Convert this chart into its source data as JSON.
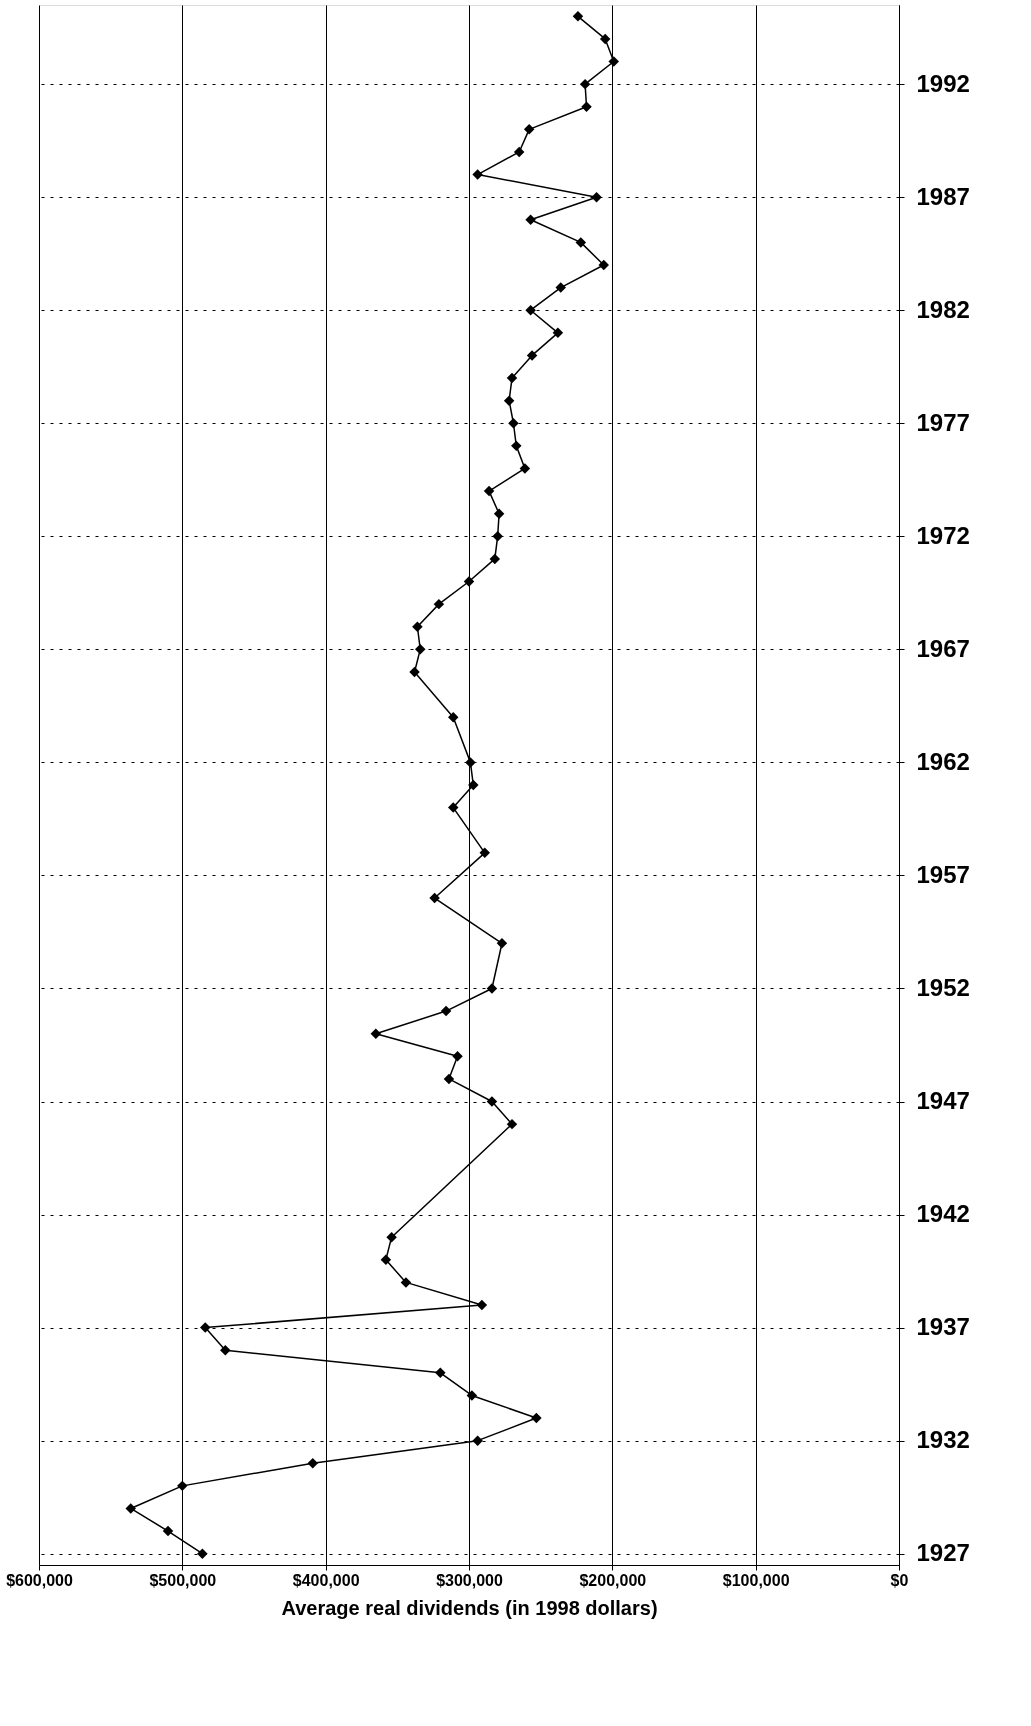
{
  "chart_data": {
    "type": "line",
    "xlabel": "Average real dividends (in 1998 dollars)",
    "series": [
      {
        "color": "#000000",
        "x": [
          486000,
          510000,
          536000,
          500000,
          409000,
          294000,
          253000,
          298000,
          320000,
          470000,
          484000,
          291000,
          344000,
          358000,
          354000,
          270000,
          284000,
          314000,
          308000,
          365000,
          316000,
          284000,
          277000,
          324000,
          289000,
          311000,
          297000,
          299000,
          311000,
          338000,
          334000,
          336000,
          321000,
          300000,
          282000,
          280000,
          279000,
          286000,
          261000,
          267000,
          269000,
          272000,
          270000,
          256000,
          238000,
          257000,
          236000,
          206000,
          222000,
          257000,
          211000,
          294000,
          265000,
          258000,
          218000,
          219000,
          199000,
          205000,
          224000
        ],
        "values": [
          1927,
          1928,
          1929,
          1930,
          1931,
          1932,
          1933,
          1934,
          1935,
          1936,
          1937,
          1938,
          1939,
          1940,
          1941,
          1946,
          1947,
          1948,
          1949,
          1950,
          1951,
          1952,
          1954,
          1956,
          1958,
          1960,
          1961,
          1962,
          1964,
          1966,
          1967,
          1968,
          1969,
          1970,
          1971,
          1972,
          1973,
          1974,
          1975,
          1976,
          1977,
          1978,
          1979,
          1980,
          1981,
          1982,
          1983,
          1984,
          1985,
          1986,
          1987,
          1988,
          1989,
          1990,
          1991,
          1992,
          1993,
          1994,
          1995
        ]
      }
    ],
    "ylim": [
      1926.5,
      1995.5
    ],
    "yticks": [
      1927,
      1932,
      1937,
      1942,
      1947,
      1952,
      1957,
      1962,
      1967,
      1972,
      1977,
      1982,
      1987,
      1992
    ],
    "xlim": [
      600000,
      0
    ],
    "xticks": [
      {
        "value": 0,
        "label": "$0"
      },
      {
        "value": 100000,
        "label": "$100,000"
      },
      {
        "value": 200000,
        "label": "$200,000"
      },
      {
        "value": 300000,
        "label": "$300,000"
      },
      {
        "value": 400000,
        "label": "$400,000"
      },
      {
        "value": 500000,
        "label": "$500,000"
      },
      {
        "value": 600000,
        "label": "$600,000"
      }
    ],
    "grid": true,
    "marker": "diamond",
    "line_style": "solid"
  }
}
